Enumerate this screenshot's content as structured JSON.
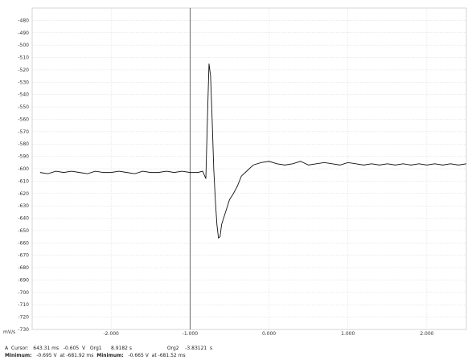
{
  "chart_data": {
    "type": "line",
    "title": "",
    "xlabel": "",
    "ylabel": "mV/s",
    "xlim": [
      -3.0,
      2.5
    ],
    "ylim": [
      -730,
      -470
    ],
    "grid": true,
    "cursor_x": -1.0,
    "x_ticks": [
      -2.0,
      -1.0,
      0.0,
      1.0,
      2.0
    ],
    "x_tick_labels": [
      "-2.000",
      "-1.000",
      "0.000",
      "1.000",
      "2.000"
    ],
    "y_ticks": [
      -480,
      -490,
      -500,
      -510,
      -520,
      -530,
      -540,
      -550,
      -560,
      -570,
      -580,
      -590,
      -600,
      -610,
      -620,
      -630,
      -640,
      -650,
      -660,
      -670,
      -680,
      -690,
      -700,
      -710,
      -720,
      -730
    ],
    "series": [
      {
        "name": "",
        "points": [
          [
            -2.9,
            -603
          ],
          [
            -2.8,
            -604
          ],
          [
            -2.7,
            -602
          ],
          [
            -2.6,
            -603
          ],
          [
            -2.5,
            -602
          ],
          [
            -2.4,
            -603
          ],
          [
            -2.3,
            -604
          ],
          [
            -2.2,
            -602
          ],
          [
            -2.1,
            -603
          ],
          [
            -2.0,
            -603
          ],
          [
            -1.9,
            -602
          ],
          [
            -1.8,
            -603
          ],
          [
            -1.7,
            -604
          ],
          [
            -1.6,
            -602
          ],
          [
            -1.5,
            -603
          ],
          [
            -1.4,
            -603
          ],
          [
            -1.3,
            -602
          ],
          [
            -1.2,
            -603
          ],
          [
            -1.1,
            -602
          ],
          [
            -1.0,
            -603
          ],
          [
            -0.9,
            -603
          ],
          [
            -0.84,
            -602
          ],
          [
            -0.8,
            -608
          ],
          [
            -0.78,
            -560
          ],
          [
            -0.76,
            -515
          ],
          [
            -0.74,
            -525
          ],
          [
            -0.72,
            -560
          ],
          [
            -0.7,
            -600
          ],
          [
            -0.68,
            -625
          ],
          [
            -0.66,
            -645
          ],
          [
            -0.64,
            -656
          ],
          [
            -0.62,
            -655
          ],
          [
            -0.6,
            -645
          ],
          [
            -0.55,
            -635
          ],
          [
            -0.5,
            -625
          ],
          [
            -0.45,
            -620
          ],
          [
            -0.4,
            -614
          ],
          [
            -0.35,
            -606
          ],
          [
            -0.3,
            -603
          ],
          [
            -0.25,
            -600
          ],
          [
            -0.2,
            -597
          ],
          [
            -0.1,
            -595
          ],
          [
            0.0,
            -594
          ],
          [
            0.1,
            -596
          ],
          [
            0.2,
            -597
          ],
          [
            0.3,
            -596
          ],
          [
            0.4,
            -594
          ],
          [
            0.5,
            -597
          ],
          [
            0.6,
            -596
          ],
          [
            0.7,
            -595
          ],
          [
            0.8,
            -596
          ],
          [
            0.9,
            -597
          ],
          [
            1.0,
            -595
          ],
          [
            1.1,
            -596
          ],
          [
            1.2,
            -597
          ],
          [
            1.3,
            -596
          ],
          [
            1.4,
            -597
          ],
          [
            1.5,
            -596
          ],
          [
            1.6,
            -597
          ],
          [
            1.7,
            -596
          ],
          [
            1.8,
            -597
          ],
          [
            1.9,
            -596
          ],
          [
            2.0,
            -597
          ],
          [
            2.1,
            -596
          ],
          [
            2.2,
            -597
          ],
          [
            2.3,
            -596
          ],
          [
            2.4,
            -597
          ],
          [
            2.5,
            -596
          ]
        ]
      }
    ]
  },
  "status": {
    "line1": "A  Cursor:   643.31 ms   -0.605  V   Org1      8.9182 s                       Org2    -3.83121  s",
    "line2_label_a": "Minimum:",
    "line2_value_a": "   -0.695 V  at -681.92 ms  ",
    "line2_label_b": "Minimum:",
    "line2_value_b": "   -0.665 V  at -681.52 ms"
  }
}
